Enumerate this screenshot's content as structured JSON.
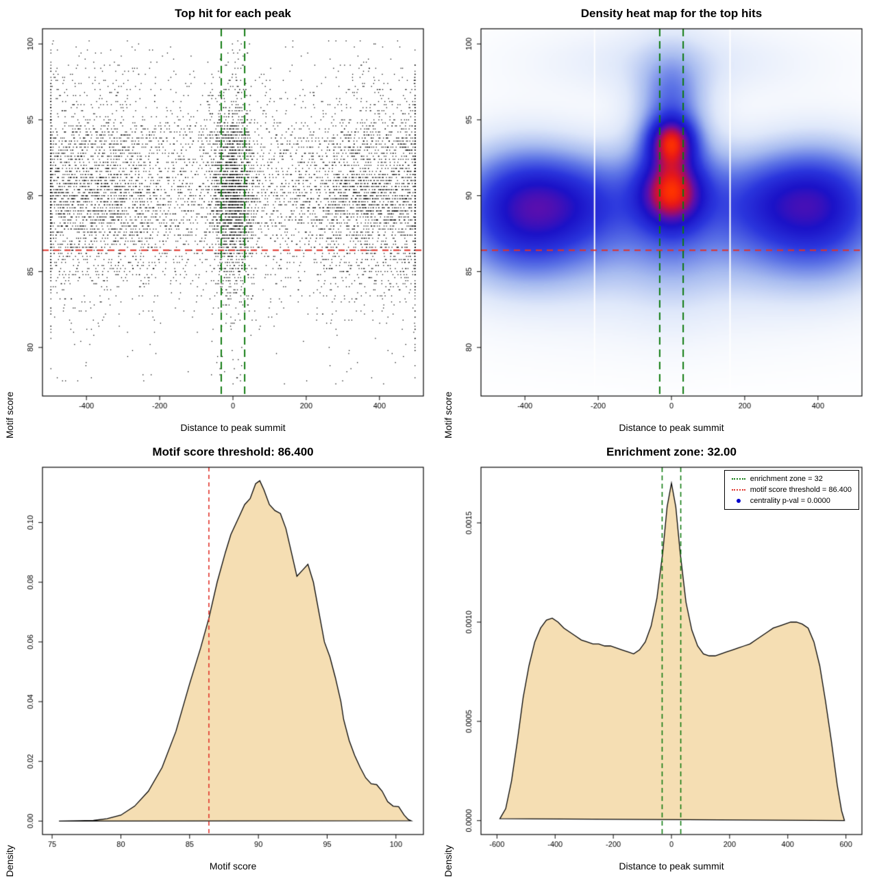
{
  "chart_data": [
    {
      "type": "scatter",
      "title": "Top hit for each peak",
      "xlabel": "Distance to peak summit",
      "ylabel": "Motif score",
      "xlim": [
        -520,
        520
      ],
      "ylim": [
        76.8,
        101
      ],
      "xticks": [
        -400,
        -200,
        0,
        200,
        400
      ],
      "yticks": [
        80,
        85,
        90,
        95,
        100
      ],
      "xtick_decimals": 0,
      "ytick_decimals": 0,
      "point_color": "#000000",
      "points_spec": {
        "n": 9500,
        "seed": 42,
        "y_quantize": 0.2,
        "x_range": [
          -497,
          497
        ],
        "y_range": [
          77.2,
          100.2
        ],
        "y_components": [
          {
            "w": 0.58,
            "dist": "norm",
            "mu": 90.0,
            "sd": 1.9
          },
          {
            "w": 0.12,
            "dist": "norm",
            "mu": 93.6,
            "sd": 0.9
          },
          {
            "w": 0.18,
            "dist": "norm",
            "mu": 86.3,
            "sd": 2.1
          },
          {
            "w": 0.07,
            "dist": "norm",
            "mu": 96.3,
            "sd": 1.6
          },
          {
            "w": 0.05,
            "dist": "unif",
            "a": 77.5,
            "b": 100.2
          }
        ],
        "x_components": [
          {
            "w": 0.2,
            "dist": "norm",
            "mu": 0,
            "sd": 30
          },
          {
            "w": 0.22,
            "dist": "norm",
            "mu": -400,
            "sd": 130
          },
          {
            "w": 0.22,
            "dist": "norm",
            "mu": 400,
            "sd": 130
          },
          {
            "w": 0.36,
            "dist": "unif",
            "a": -497,
            "b": 497
          }
        ]
      },
      "hlines": [
        {
          "y": 86.4,
          "color": "#e03128",
          "dash": [
            9,
            7
          ],
          "width": 2
        }
      ],
      "vlines": [
        {
          "x": -32,
          "color": "#0e7a0e",
          "dash": [
            11,
            7
          ],
          "width": 2
        },
        {
          "x": 32,
          "color": "#0e7a0e",
          "dash": [
            11,
            7
          ],
          "width": 2
        }
      ]
    },
    {
      "type": "heatmap",
      "title": "Density heat map for the top hits",
      "xlabel": "Distance to peak summit",
      "ylabel": "Motif score",
      "xlim": [
        -520,
        520
      ],
      "ylim": [
        76.8,
        101
      ],
      "xticks": [
        -400,
        -200,
        0,
        200,
        400
      ],
      "yticks": [
        80,
        85,
        90,
        95,
        100
      ],
      "xtick_decimals": 0,
      "ytick_decimals": 0,
      "colormap": [
        [
          0.0,
          "#ffffff"
        ],
        [
          0.06,
          "#f4f7fd"
        ],
        [
          0.15,
          "#dfe8fa"
        ],
        [
          0.28,
          "#a8bcf0"
        ],
        [
          0.42,
          "#5d74e6"
        ],
        [
          0.55,
          "#2b36dd"
        ],
        [
          0.68,
          "#1b12c8"
        ],
        [
          0.78,
          "#5c0fae"
        ],
        [
          0.87,
          "#b30d55"
        ],
        [
          0.94,
          "#e81818"
        ],
        [
          1.0,
          "#ff3300"
        ]
      ],
      "blobs": [
        {
          "x": 0,
          "y": 89.7,
          "sx": 430,
          "sy": 2.4,
          "a": 0.5
        },
        {
          "x": -410,
          "y": 89.4,
          "sx": 120,
          "sy": 2.6,
          "a": 1.15
        },
        {
          "x": 410,
          "y": 89.6,
          "sx": 120,
          "sy": 2.6,
          "a": 1.1
        },
        {
          "x": -250,
          "y": 89.5,
          "sx": 120,
          "sy": 2.2,
          "a": 0.55
        },
        {
          "x": 250,
          "y": 89.5,
          "sx": 120,
          "sy": 2.2,
          "a": 0.5
        },
        {
          "x": 0,
          "y": 90.3,
          "sx": 60,
          "sy": 1.6,
          "a": 1.35
        },
        {
          "x": 0,
          "y": 93.6,
          "sx": 45,
          "sy": 1.1,
          "a": 1.5
        },
        {
          "x": 0,
          "y": 92.0,
          "sx": 80,
          "sy": 4.5,
          "a": 0.6
        },
        {
          "x": 0,
          "y": 96.5,
          "sx": 55,
          "sy": 1.8,
          "a": 0.45
        },
        {
          "x": 0,
          "y": 98.8,
          "sx": 260,
          "sy": 1.6,
          "a": 0.22
        },
        {
          "x": 0,
          "y": 86.0,
          "sx": 350,
          "sy": 2.0,
          "a": 0.28
        },
        {
          "x": 0,
          "y": 83.0,
          "sx": 380,
          "sy": 2.5,
          "a": 0.12
        },
        {
          "x": -410,
          "y": 85.8,
          "sx": 150,
          "sy": 2.0,
          "a": 0.25
        },
        {
          "x": 410,
          "y": 85.8,
          "sx": 150,
          "sy": 2.0,
          "a": 0.25
        }
      ],
      "white_lines_x": [
        -210,
        160
      ],
      "hlines": [
        {
          "y": 86.4,
          "color": "#e03128",
          "dash": [
            9,
            7
          ],
          "width": 2
        }
      ],
      "vlines": [
        {
          "x": -32,
          "color": "#0e7a0e",
          "dash": [
            11,
            7
          ],
          "width": 2
        },
        {
          "x": 32,
          "color": "#0e7a0e",
          "dash": [
            11,
            7
          ],
          "width": 2
        }
      ]
    },
    {
      "type": "density",
      "title": "Motif score threshold: 86.400",
      "xlabel": "Motif score",
      "ylabel": "Density",
      "xlim": [
        74.3,
        102
      ],
      "ylim": [
        -0.0045,
        0.1185
      ],
      "xticks": [
        75,
        80,
        85,
        90,
        95,
        100
      ],
      "yticks": [
        0,
        0.02,
        0.04,
        0.06,
        0.08,
        0.1
      ],
      "xtick_decimals": 0,
      "ytick_decimals": 2,
      "fill": "#f5deb3",
      "stroke": "#000000",
      "curve": [
        [
          75.5,
          0
        ],
        [
          77,
          0.0001
        ],
        [
          78,
          0.0002
        ],
        [
          79,
          0.0008
        ],
        [
          80,
          0.002
        ],
        [
          81,
          0.005
        ],
        [
          82,
          0.01
        ],
        [
          83,
          0.018
        ],
        [
          84,
          0.03
        ],
        [
          85,
          0.046
        ],
        [
          85.8,
          0.058
        ],
        [
          86.4,
          0.068
        ],
        [
          87,
          0.08
        ],
        [
          87.6,
          0.09
        ],
        [
          88,
          0.096
        ],
        [
          88.6,
          0.102
        ],
        [
          89,
          0.106
        ],
        [
          89.4,
          0.108
        ],
        [
          89.8,
          0.113
        ],
        [
          90.1,
          0.114
        ],
        [
          90.4,
          0.111
        ],
        [
          90.8,
          0.106
        ],
        [
          91.2,
          0.104
        ],
        [
          91.6,
          0.103
        ],
        [
          92,
          0.098
        ],
        [
          92.4,
          0.09
        ],
        [
          92.8,
          0.082
        ],
        [
          93.2,
          0.084
        ],
        [
          93.6,
          0.086
        ],
        [
          94,
          0.08
        ],
        [
          94.4,
          0.07
        ],
        [
          94.8,
          0.06
        ],
        [
          95.2,
          0.055
        ],
        [
          95.6,
          0.048
        ],
        [
          96,
          0.04
        ],
        [
          96.2,
          0.034
        ],
        [
          96.6,
          0.027
        ],
        [
          97,
          0.022
        ],
        [
          97.4,
          0.018
        ],
        [
          97.8,
          0.0145
        ],
        [
          98.2,
          0.0125
        ],
        [
          98.6,
          0.0122
        ],
        [
          99,
          0.01
        ],
        [
          99.4,
          0.0065
        ],
        [
          99.8,
          0.005
        ],
        [
          100.2,
          0.0048
        ],
        [
          100.6,
          0.002
        ],
        [
          100.9,
          0.0005
        ],
        [
          101.1,
          0.0001
        ]
      ],
      "vlines": [
        {
          "x": 86.4,
          "color": "#e03128",
          "dash": [
            6,
            5
          ],
          "width": 1.6
        }
      ]
    },
    {
      "type": "density",
      "title": "Enrichment zone: 32.00",
      "xlabel": "Distance to peak summit",
      "ylabel": "Density",
      "xlim": [
        -655,
        655
      ],
      "ylim": [
        -7e-05,
        0.00178
      ],
      "xticks": [
        -600,
        -400,
        -200,
        0,
        200,
        400,
        600
      ],
      "yticks": [
        0,
        0.0005,
        0.001,
        0.0015
      ],
      "xtick_decimals": 0,
      "ytick_decimals": 4,
      "fill": "#f5deb3",
      "stroke": "#000000",
      "curve": [
        [
          -590,
          1e-05
        ],
        [
          -570,
          6e-05
        ],
        [
          -550,
          0.0002
        ],
        [
          -530,
          0.0004
        ],
        [
          -510,
          0.00062
        ],
        [
          -490,
          0.00078
        ],
        [
          -470,
          0.0009
        ],
        [
          -450,
          0.00097
        ],
        [
          -430,
          0.00101
        ],
        [
          -410,
          0.00102
        ],
        [
          -390,
          0.001
        ],
        [
          -370,
          0.00097
        ],
        [
          -350,
          0.00095
        ],
        [
          -330,
          0.00093
        ],
        [
          -310,
          0.00091
        ],
        [
          -290,
          0.0009
        ],
        [
          -270,
          0.00089
        ],
        [
          -250,
          0.00089
        ],
        [
          -230,
          0.00088
        ],
        [
          -210,
          0.00088
        ],
        [
          -190,
          0.00087
        ],
        [
          -170,
          0.00086
        ],
        [
          -150,
          0.00085
        ],
        [
          -130,
          0.00084
        ],
        [
          -110,
          0.00086
        ],
        [
          -90,
          0.0009
        ],
        [
          -70,
          0.00098
        ],
        [
          -50,
          0.00112
        ],
        [
          -30,
          0.00135
        ],
        [
          -15,
          0.00158
        ],
        [
          0,
          0.0017
        ],
        [
          15,
          0.00158
        ],
        [
          30,
          0.00135
        ],
        [
          50,
          0.0011
        ],
        [
          70,
          0.00096
        ],
        [
          90,
          0.00088
        ],
        [
          110,
          0.00084
        ],
        [
          130,
          0.00083
        ],
        [
          150,
          0.00083
        ],
        [
          170,
          0.00084
        ],
        [
          190,
          0.00085
        ],
        [
          210,
          0.00086
        ],
        [
          230,
          0.00087
        ],
        [
          250,
          0.00088
        ],
        [
          270,
          0.00089
        ],
        [
          290,
          0.00091
        ],
        [
          310,
          0.00093
        ],
        [
          330,
          0.00095
        ],
        [
          350,
          0.00097
        ],
        [
          370,
          0.00098
        ],
        [
          390,
          0.00099
        ],
        [
          410,
          0.001
        ],
        [
          430,
          0.001
        ],
        [
          450,
          0.00099
        ],
        [
          470,
          0.00097
        ],
        [
          490,
          0.0009
        ],
        [
          510,
          0.00078
        ],
        [
          530,
          0.0006
        ],
        [
          550,
          0.0004
        ],
        [
          570,
          0.00018
        ],
        [
          585,
          5e-05
        ],
        [
          595,
          0
        ]
      ],
      "vlines": [
        {
          "x": -32,
          "color": "#0e7a0e",
          "dash": [
            7,
            5
          ],
          "width": 1.6
        },
        {
          "x": 32,
          "color": "#0e7a0e",
          "dash": [
            7,
            5
          ],
          "width": 1.6
        }
      ],
      "legend": {
        "items": [
          {
            "marker": "line",
            "color": "#0e7a0e",
            "label": "enrichment zone = 32"
          },
          {
            "marker": "line",
            "color": "#e03128",
            "label": "motif score threshold = 86.400"
          },
          {
            "marker": "point",
            "color": "#0000cd",
            "label": "centrality p-val = 0.0000"
          }
        ]
      }
    }
  ]
}
